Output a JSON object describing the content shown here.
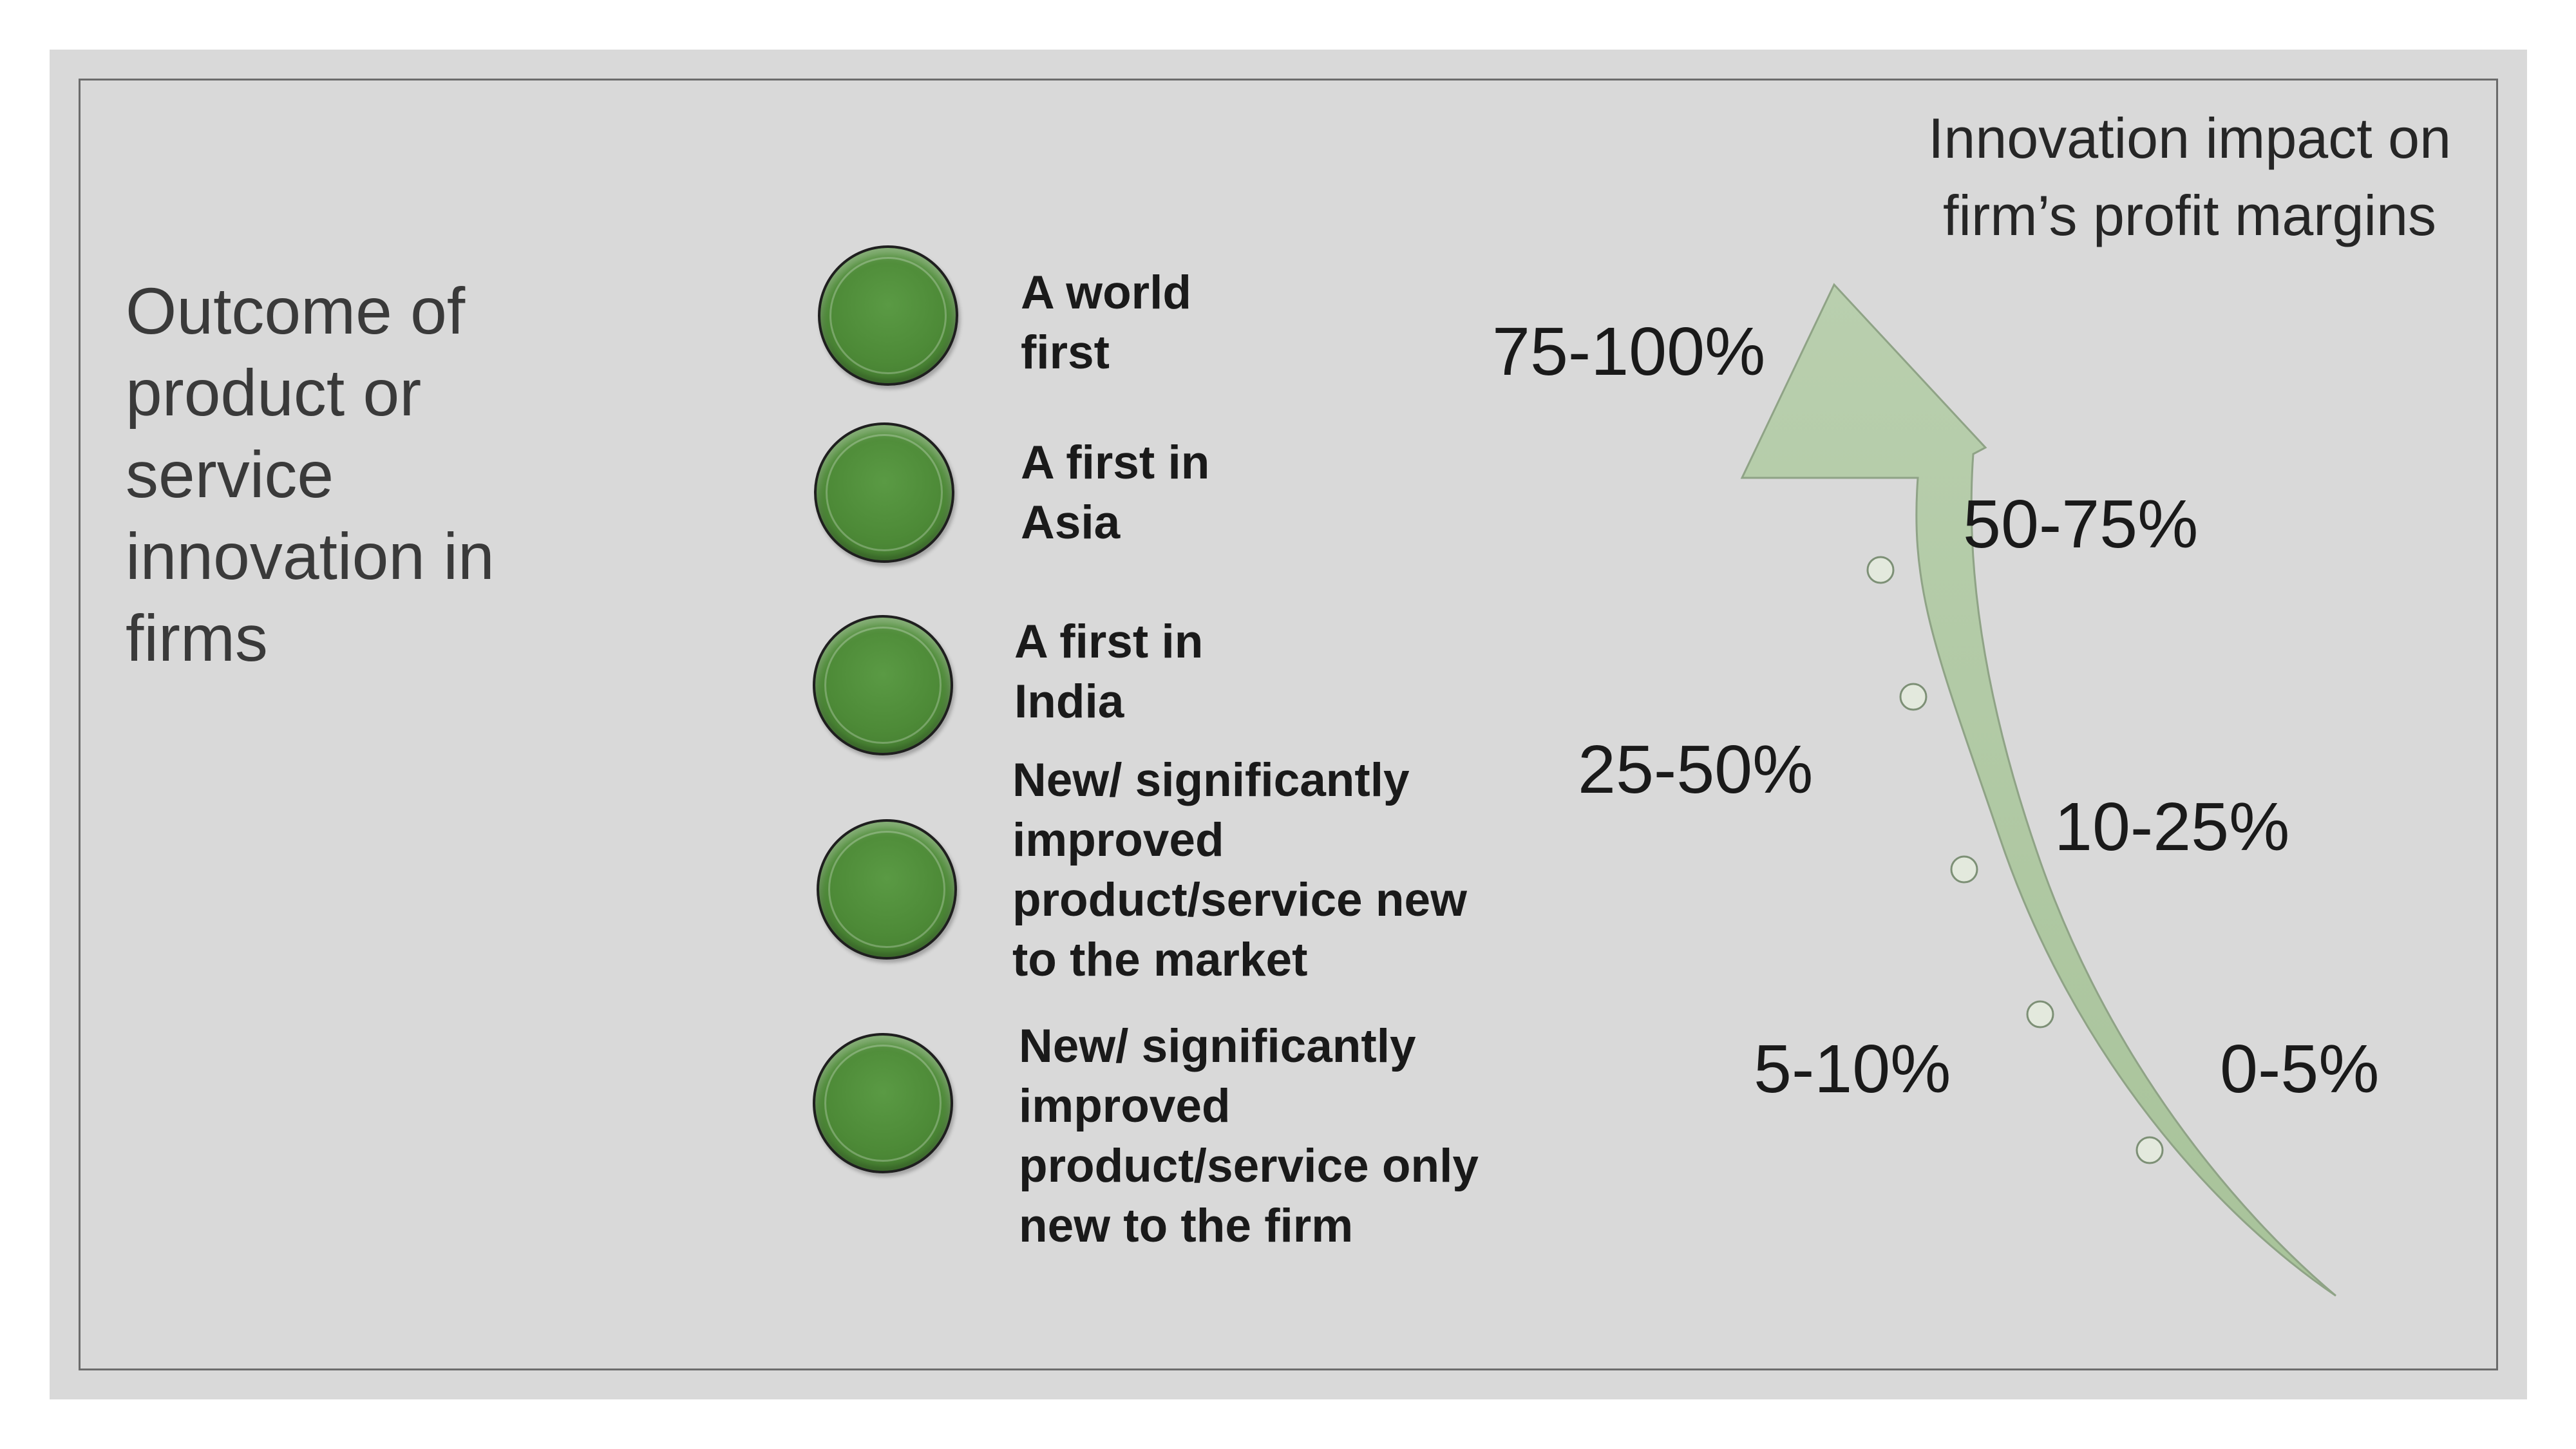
{
  "diagram": {
    "left_title": "Outcome of product or service innovation in firms",
    "right_title_line1": "Innovation impact  on",
    "right_title_line2": "firm’s profit  margins",
    "outcomes": [
      {
        "label": "A world first"
      },
      {
        "label": "A first in Asia"
      },
      {
        "label": "A first in India"
      },
      {
        "label": "New/ significantly improved product/service  new to the market"
      },
      {
        "label": "New/ significantly improved product/service only new to the firm"
      }
    ],
    "impact_levels": {
      "l1": "75-100%",
      "l2": "50-75%",
      "l3": "25-50%",
      "l4": "10-25%",
      "l5": "5-10%",
      "l6": "0-5%"
    }
  }
}
